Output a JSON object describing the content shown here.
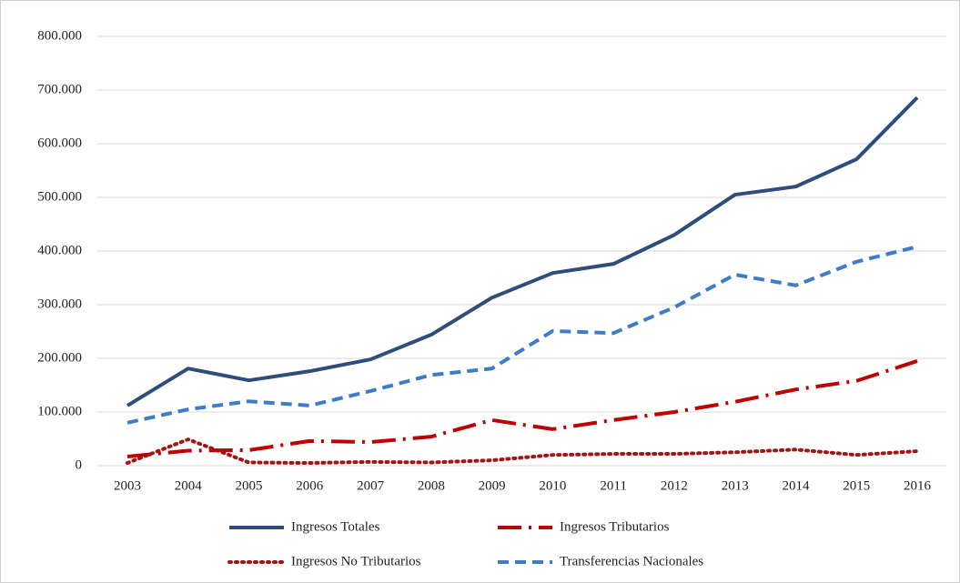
{
  "chart_data": {
    "type": "line",
    "categories": [
      "2003",
      "2004",
      "2005",
      "2006",
      "2007",
      "2008",
      "2009",
      "2010",
      "2011",
      "2012",
      "2013",
      "2014",
      "2015",
      "2016"
    ],
    "series": [
      {
        "name": "Ingresos Totales",
        "color": "#2e4d7b",
        "dash": "solid",
        "values": [
          112000,
          181000,
          159000,
          176000,
          198000,
          244000,
          313000,
          359000,
          376000,
          430000,
          505000,
          520000,
          571000,
          686000
        ]
      },
      {
        "name": "Ingresos Tributarios",
        "color": "#c00000",
        "dash": "dash-dot",
        "values": [
          17000,
          28000,
          29000,
          46000,
          44000,
          54000,
          85000,
          68000,
          85000,
          100000,
          119000,
          142000,
          158000,
          195000
        ]
      },
      {
        "name": "Ingresos No Tributarios",
        "color": "#a31515",
        "dash": "dotted",
        "values": [
          5000,
          49000,
          6000,
          5000,
          7000,
          6000,
          10000,
          20000,
          22000,
          22000,
          25000,
          30000,
          20000,
          27000
        ]
      },
      {
        "name": "Transferencias Nacionales",
        "color": "#3d7cc9",
        "dash": "dashed",
        "values": [
          80000,
          105000,
          120000,
          112000,
          139000,
          169000,
          181000,
          251000,
          247000,
          295000,
          356000,
          336000,
          380000,
          408000
        ]
      }
    ],
    "ylim": [
      0,
      800000
    ],
    "yticks": [
      0,
      {
        "value": 100000,
        "label": "100.000"
      },
      {
        "value": 200000,
        "label": "200.000"
      },
      {
        "value": 300000,
        "label": "300.000"
      },
      {
        "value": 400000,
        "label": "400.000"
      },
      {
        "value": 500000,
        "label": "500.000"
      },
      {
        "value": 600000,
        "label": "600.000"
      },
      {
        "value": 700000,
        "label": "700.000"
      },
      {
        "value": 800000,
        "label": "800.000"
      }
    ],
    "grid": true,
    "legend": "bottom"
  }
}
